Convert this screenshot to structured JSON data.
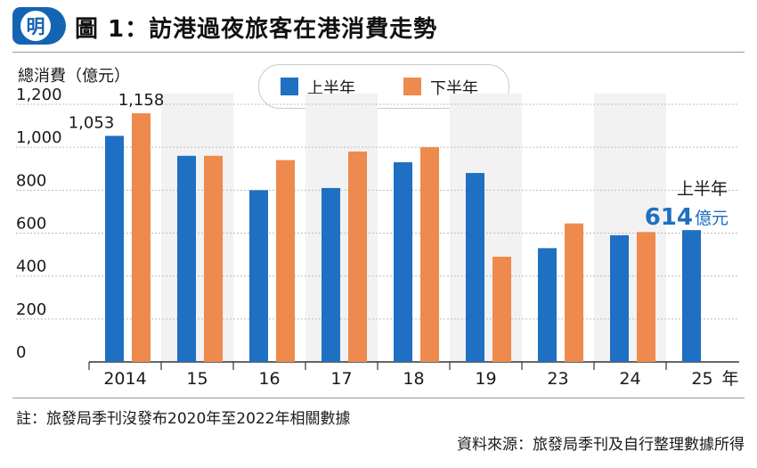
{
  "header": {
    "logo_text": "明",
    "title": "圖 1：訪港過夜旅客在港消費走勢"
  },
  "colors": {
    "brand": "#1464b4",
    "first_half": "#1f6fc2",
    "second_half": "#ee8a4e",
    "highlight": "#1f6fc2"
  },
  "chart_data": {
    "type": "bar",
    "ylabel": "總消費（億元）",
    "xlabel": "年",
    "categories": [
      "2014",
      "15",
      "16",
      "17",
      "18",
      "19",
      "23",
      "24",
      "25"
    ],
    "ylim": [
      0,
      1200
    ],
    "yticks": [
      0,
      200,
      400,
      600,
      800,
      1000,
      1200
    ],
    "ytick_labels": [
      "0",
      "200",
      "400",
      "600",
      "800",
      "1,000",
      "1,200"
    ],
    "grid": true,
    "legend_position": "top-center",
    "series": [
      {
        "name": "上半年",
        "color": "#1f6fc2",
        "values": [
          1053,
          960,
          800,
          810,
          930,
          880,
          530,
          590,
          614
        ]
      },
      {
        "name": "下半年",
        "color": "#ee8a4e",
        "values": [
          1158,
          960,
          940,
          980,
          1000,
          490,
          645,
          605,
          null
        ]
      }
    ],
    "data_labels": [
      {
        "series": 0,
        "index": 0,
        "text": "1,053"
      },
      {
        "series": 1,
        "index": 0,
        "text": "1,158"
      }
    ],
    "annotation": {
      "label": "上半年",
      "value_text": "614",
      "unit_text": "億元",
      "series": 0,
      "index": 8
    }
  },
  "footer": {
    "note": "註：旅發局季刊沒發布2020年至2022年相關數據",
    "source": "資料來源：旅發局季刊及自行整理數據所得"
  }
}
